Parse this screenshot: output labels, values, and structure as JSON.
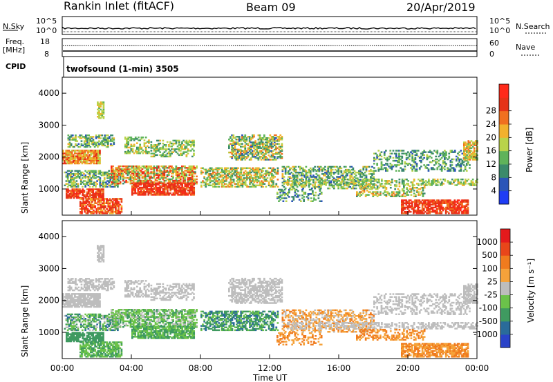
{
  "header": {
    "station": "Rankin Inlet (fitACF)",
    "beam": "Beam 09",
    "date": "20/Apr/2019"
  },
  "noise_panel": {
    "left_label": "N.Sky",
    "left_ticks": [
      "10^5",
      "10^0"
    ],
    "right_label": "N.Search",
    "right_ticks": [
      "10^5",
      "10^0"
    ]
  },
  "freq_panel": {
    "left_label_top": "Freq.",
    "left_label_unit": "[MHz]",
    "left_ticks": [
      "18",
      "8"
    ],
    "right_label": "Nave",
    "right_ticks": [
      "60",
      "0"
    ],
    "cpid_label": "CPID",
    "cpid_text": "twofsound (1-min) 3505"
  },
  "chart_data": [
    {
      "type": "heatmap",
      "name": "Power",
      "ylabel": "Slant Range [km]",
      "xlabel": "Time UT",
      "ylim": [
        180,
        4500
      ],
      "yticks": [
        "1000",
        "2000",
        "3000",
        "4000"
      ],
      "xticks": [
        "00:00",
        "04:00",
        "08:00",
        "12:00",
        "16:00",
        "20:00",
        "00:00"
      ],
      "colorbar": {
        "label": "Power [dB]",
        "ticks": [
          "4",
          "8",
          "12",
          "16",
          "20",
          "24",
          "28"
        ],
        "colors": [
          "#1f3df5",
          "#2b55b8",
          "#3b8a6b",
          "#5fb35a",
          "#b9d34a",
          "#f2b12d",
          "#f07020",
          "#e53318",
          "#ff2a1a"
        ]
      }
    },
    {
      "type": "heatmap",
      "name": "Velocity",
      "ylabel": "Slant Range [km]",
      "xlabel": "Time UT",
      "ylim": [
        180,
        4500
      ],
      "yticks": [
        "1000",
        "2000",
        "3000",
        "4000"
      ],
      "xticks": [
        "00:00",
        "04:00",
        "08:00",
        "12:00",
        "16:00",
        "20:00",
        "00:00"
      ],
      "colorbar": {
        "label": "Velocity [m s⁻¹]",
        "ticks": [
          "1000",
          "500",
          "100",
          "25",
          "-25",
          "-100",
          "-500",
          "-1000"
        ],
        "colors": [
          "#2a43c8",
          "#2a6b9a",
          "#3f9a60",
          "#6bc24a",
          "#bdbdbd",
          "#f5a23a",
          "#f07b1e",
          "#e8461a",
          "#e41a1c"
        ]
      }
    }
  ]
}
